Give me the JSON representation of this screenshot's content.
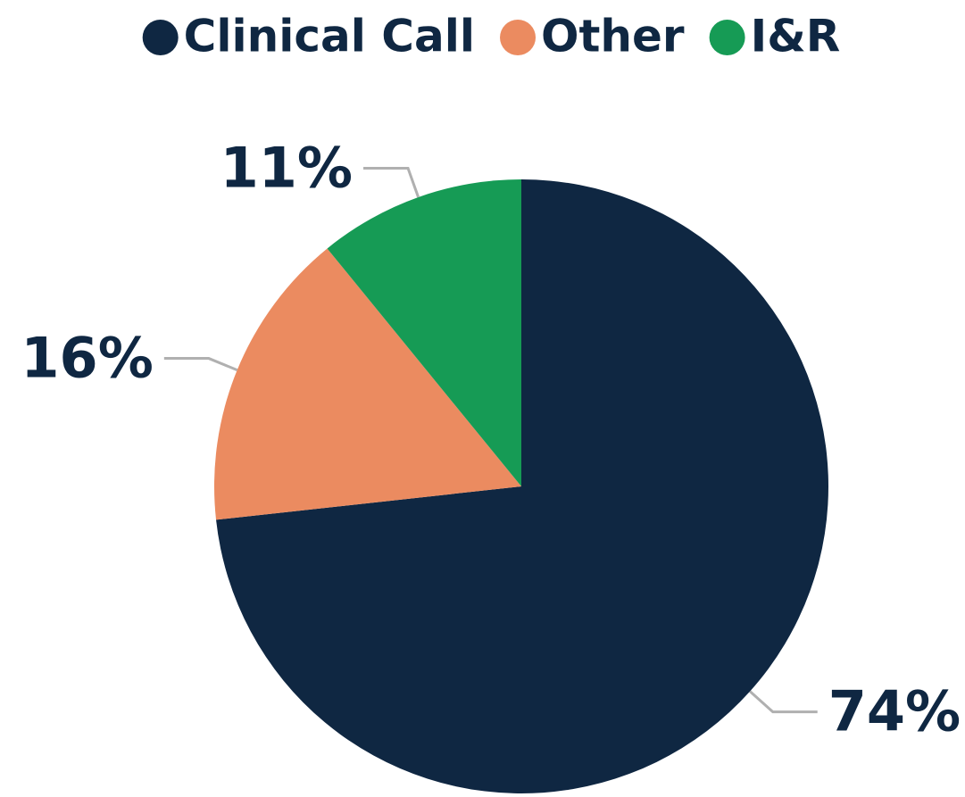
{
  "chart_data": {
    "type": "pie",
    "categories": [
      "Clinical Call",
      "Other",
      "I&R"
    ],
    "values": [
      74,
      16,
      11
    ],
    "value_labels": [
      "74%",
      "16%",
      "11%"
    ],
    "colors": [
      "#0f2742",
      "#eb8b60",
      "#169b55"
    ],
    "legend": "top"
  }
}
